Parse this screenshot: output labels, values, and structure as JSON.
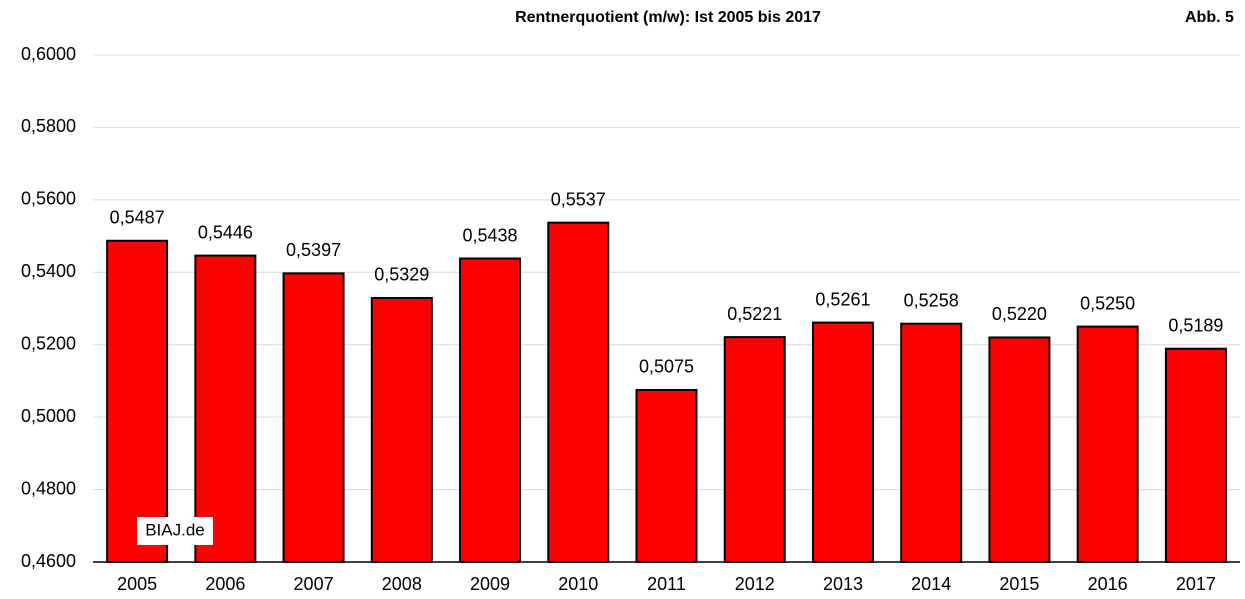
{
  "chart_data": {
    "type": "bar",
    "title": "Rentnerquotient (m/w): Ist 2005 bis 2017",
    "annotations": [
      "Abb. 5",
      "BIAJ.de"
    ],
    "categories": [
      "2005",
      "2006",
      "2007",
      "2008",
      "2009",
      "2010",
      "2011",
      "2012",
      "2013",
      "2014",
      "2015",
      "2016",
      "2017"
    ],
    "values": [
      0.5487,
      0.5446,
      0.5397,
      0.5329,
      0.5438,
      0.5537,
      0.5075,
      0.5221,
      0.5261,
      0.5258,
      0.522,
      0.525,
      0.5189
    ],
    "value_labels": [
      "0,5487",
      "0,5446",
      "0,5397",
      "0,5329",
      "0,5438",
      "0,5537",
      "0,5075",
      "0,5221",
      "0,5261",
      "0,5258",
      "0,5220",
      "0,5250",
      "0,5189"
    ],
    "color": "#ff0000",
    "ylim": [
      0.46,
      0.6
    ],
    "yticks": [
      {
        "value": 0.46,
        "label": "0,4600"
      },
      {
        "value": 0.48,
        "label": "0,4800"
      },
      {
        "value": 0.5,
        "label": "0,5000"
      },
      {
        "value": 0.52,
        "label": "0,5200"
      },
      {
        "value": 0.54,
        "label": "0,5400"
      },
      {
        "value": 0.56,
        "label": "0,5600"
      },
      {
        "value": 0.58,
        "label": "0,5800"
      },
      {
        "value": 0.6,
        "label": "0,6000"
      }
    ],
    "grid": true
  }
}
